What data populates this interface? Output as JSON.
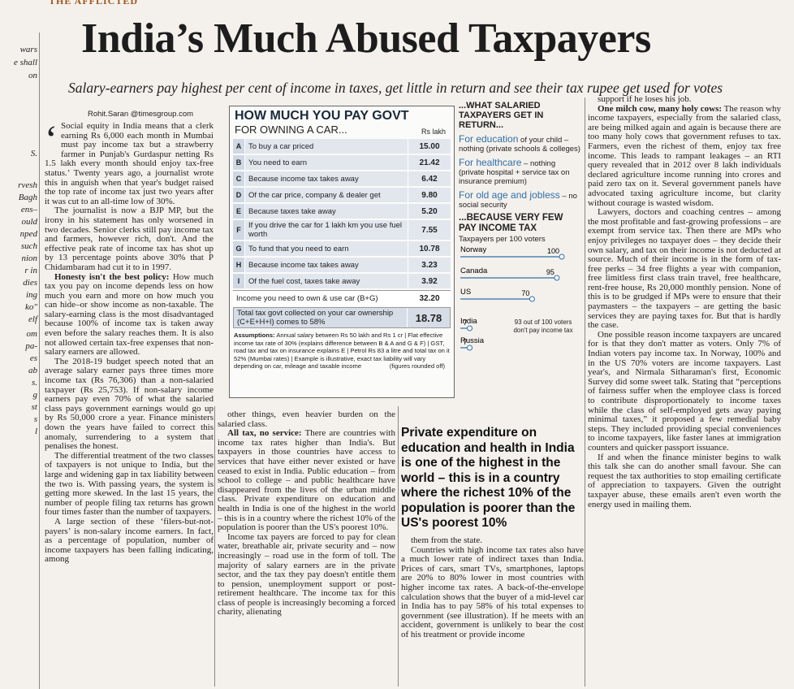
{
  "header_strip": "THE AFFLICTED",
  "margin_fragments": [
    "wars",
    "e shall",
    "on",
    "S.",
    "rvesh",
    "Bagh",
    "ens–",
    "ould",
    "nped",
    "such",
    "nion",
    "r in",
    "dies",
    "ing",
    "ko\"",
    "elf",
    "om",
    "pa-",
    "es",
    "ab",
    "s.",
    "g",
    "st",
    "s",
    "l"
  ],
  "title": "India’s Much Abused Taxpayers",
  "subtitle": "Salary-earners pay highest per cent of income in taxes, get little in return and see their tax rupee get used for votes",
  "byline": "Rohit.Saran @timesgroup.com",
  "columns": [
    {
      "paragraphs": [
        {
          "text": "Social equity in India means that a clerk earning Rs 6,000 each month in Mumbai must pay income tax but a strawberry farmer in Punjab's Gurdaspur netting Rs 1.5 lakh every month should enjoy tax-free status.’ Twenty years ago, a journalist wrote this in anguish when that year's budget raised the top rate of income tax just two years after it was cut to an all-time low of 30%."
        },
        {
          "text": "The journalist is now a BJP MP, but the irony in his statement has only worsened in two decades. Senior clerks still pay income tax and farmers, however rich, don't. And the effective peak rate of income tax has shot up by 13 percentage points above 30% that P Chidambaram had cut it to in 1997."
        },
        {
          "lead": "Honesty isn't the best policy:",
          "text": "How much tax you pay on income depends less on how much you earn and more on how much you can hide–or show income as non-taxable. The salary-earning class is the most disadvantaged because 100% of income tax is taken away even before the salary reaches them. It is also not allowed certain tax-free expenses that non-salary earners are allowed."
        },
        {
          "text": "The 2018-19 budget speech noted that an average salary earner pays three times more income tax (Rs 76,306) than a non-salaried taxpayer (Rs 25,753). If non-salary income earners pay even 70% of what the salaried class pays government earnings would go up by Rs 50,000 crore a year. Finance ministers down the years have failed to correct this anomaly, surrendering to a system that penalises the honest."
        },
        {
          "text": "The differential treatment of the two classes of taxpayers is not unique to India, but the large and widening gap in tax liability between the two is. With passing years, the system is getting more skewed. In the last 15 years, the number of people filing tax returns has grown four times faster than the number of taxpayers."
        },
        {
          "text": "A large section of these ‘filers-but-not-payers’ is non-salary income earners. In fact, as a percentage of population, number of income taxpayers has been falling indicating, among"
        }
      ]
    },
    {
      "paragraphs": [
        {
          "text": "other things, even heavier burden on the salaried class."
        },
        {
          "lead": "All tax, no service:",
          "text": "There are countries with income tax rates higher than India's. But taxpayers in those countries have access to services that have either never existed or have ceased to exist in India. Public education – from school to college – and public healthcare have disappeared from the lives of the urban middle class. Private expenditure on education and health in India is one of the highest in the world – this is in a country where the richest 10% of the population is poorer than the US's poorest 10%."
        },
        {
          "text": "Income tax payers are forced to pay for clean water, breathable air, private security and – now increasingly – road use in the form of toll. The majority of salary earners are in the private sector, and the tax they pay doesn't entitle them to pension, unemployment support or post-retirement healthcare. The income tax for this class of people is increasingly becoming a forced charity, alienating"
        }
      ]
    },
    {
      "paragraphs": [
        {
          "text": "them from the state."
        },
        {
          "text": "Countries with high income tax rates also have a much lower rate of indirect taxes than India. Prices of cars, smart TVs, smartphones, laptops are 20% to 80% lower in most countries with higher income tax rates. A back-of-the-envelope calculation shows that the buyer of a mid-level car in India has to pay 58% of his total expenses to government (see illustration). If he meets with an accident, government is unlikely to bear the cost of his treatment or provide income"
        }
      ]
    },
    {
      "paragraphs": [
        {
          "text": "support if he loses his job."
        },
        {
          "lead": "One milch cow, many holy cows:",
          "text": "The reason why income taxpayers, especially from the salaried class, are being milked again and again is because there are too many holy cows that government refuses to tax. Farmers, even the richest of them, enjoy tax free income. This leads to rampant leakages – an RTI query revealed that in 2012 over 8 lakh individuals declared agriculture income running into crores and paid zero tax on it. Several government panels have advocated taxing agriculture income, but clarity without courage is wasted wisdom."
        },
        {
          "text": "Lawyers, doctors and coaching centres – among the most profitable and fast-growing professions – are exempt from service tax. Then there are MPs who enjoy privileges no taxpayer does – they decide their own salary, and tax on their income is not deducted at source. Much of their income is in the form of tax-free perks – 34 free flights a year with companion, free limitless first class train travel, free healthcare, rent-free house, Rs 20,000 monthly pension. None of this is to be grudged if MPs were to ensure that their paymasters – the taxpayers – are getting the basic services they are paying taxes for. But that is hardly the case."
        },
        {
          "text": "One possible reason income taxpayers are uncared for is that they don't matter as voters. Only 7% of Indian voters pay income tax. In Norway, 100% and in the US 70% voters are income taxpayers. Last year's, and Nirmala Sitharaman's first, Economic Survey did some sweet talk. Stating that “perceptions of fairness suffer when the employee class is forced to contribute disproportionately to income taxes while the class of self-employed gets away paying minimal taxes,” it proposed a few remedial baby steps. They included providing special conveniences to income taxpayers, like faster lanes at immigration counters and quicker passport issuance."
        },
        {
          "text": "If and when the finance minister begins to walk this talk she can do another small favour. She can request the tax authorities to stop emailing certificate of appreciation to taxpayers. Given the outright taxpayer abuse, these emails aren't even worth the energy used in mailing them."
        }
      ]
    }
  ],
  "pullquote": "Private expenditure on education and health in India is one of the highest in the world – this is in a country where the richest 10% of the population is poorer than the US's poorest 10%",
  "infobox": {
    "title": "HOW MUCH YOU PAY GOVT",
    "subtitle": "FOR OWNING A CAR...",
    "unit": "Rs lakh",
    "rows": [
      [
        "A",
        "To buy a car priced",
        "15.00"
      ],
      [
        "B",
        "You need to earn",
        "21.42"
      ],
      [
        "C",
        "Because income tax takes away",
        "6.42"
      ],
      [
        "D",
        "Of the car price, company & dealer get",
        "9.80"
      ],
      [
        "E",
        "Because taxes take away",
        "5.20"
      ],
      [
        "F",
        "If you drive the car for 1 lakh km you use fuel worth",
        "7.55"
      ],
      [
        "G",
        "To fund that you need to earn",
        "10.78"
      ],
      [
        "H",
        "Because income tax takes away",
        "3.23"
      ],
      [
        "I",
        "Of the fuel cost, taxes take away",
        "3.92"
      ]
    ],
    "income_row": [
      "Income you need to own & use car (B+G)",
      "32.20"
    ],
    "total_row": [
      "Total tax govt collected on your car ownership (C+E+H+I) comes to 58%",
      "18.78"
    ],
    "assumptions_label": "Assumptions:",
    "assumptions": "Annual salary between Rs 50 lakh and Rs 1 cr | Flat effective income tax rate of 30% (explains difference between B & A and G & F) | GST, road tax and tax on insurance explains E | Petrol Rs 83 a litre and total tax on it 52% (Mumbai rates) | Example is illustrative, exact tax liability will vary depending on car, mileage and taxable income",
    "rounding_note": "(figures rounded off)"
  },
  "returns": {
    "heading": "...WHAT SALARIED TAXPAYERS GET IN RETURN...",
    "items": [
      {
        "head": "For education",
        "rest": "of your child – nothing (private schools & colleges)"
      },
      {
        "head": "For healthcare",
        "rest": "– nothing (private hospital + service tax on insurance premium)"
      },
      {
        "head": "For old age and jobless",
        "rest": "– no social security"
      }
    ],
    "heading2": "...BECAUSE VERY FEW PAY INCOME TAX",
    "subheading": "Taxpayers per 100 voters",
    "countries": [
      "Norway",
      "Canada",
      "US",
      "India",
      "Russia"
    ],
    "values": [
      100,
      95,
      70,
      7,
      7
    ],
    "note": "93 out of 100 voters don't pay income tax"
  }
}
